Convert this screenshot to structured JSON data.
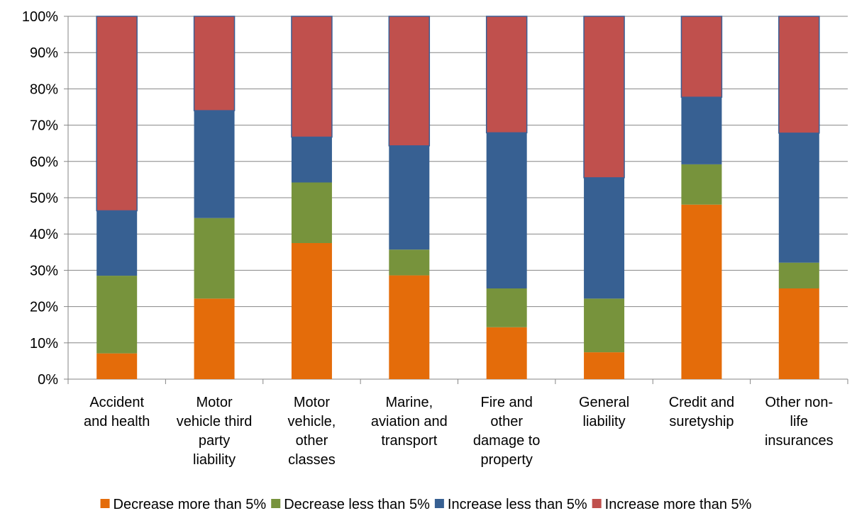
{
  "chart_data": {
    "type": "bar",
    "stacked": true,
    "percent": true,
    "categories": [
      [
        "Accident",
        "and health"
      ],
      [
        "Motor",
        "vehicle third",
        "party",
        "liability"
      ],
      [
        "Motor",
        "vehicle,",
        "other",
        "classes"
      ],
      [
        "Marine,",
        "aviation and",
        "transport"
      ],
      [
        "Fire and",
        "other",
        "damage to",
        "property"
      ],
      [
        "General",
        "liability"
      ],
      [
        "Credit and",
        "suretyship"
      ],
      [
        "Other non-",
        "life",
        "insurances"
      ]
    ],
    "series": [
      {
        "name": "Decrease more than 5%",
        "color": "#E46C0A",
        "values": [
          7.1,
          22.2,
          37.5,
          28.6,
          14.3,
          7.4,
          48.1,
          25.0
        ]
      },
      {
        "name": "Decrease less than 5%",
        "color": "#77933C",
        "values": [
          21.4,
          22.2,
          16.7,
          7.1,
          10.7,
          14.8,
          11.1,
          7.1
        ]
      },
      {
        "name": "Increase less than 5%",
        "color": "#376092",
        "values": [
          17.9,
          29.6,
          12.5,
          28.6,
          42.9,
          33.3,
          18.5,
          35.7
        ]
      },
      {
        "name": "Increase more than 5%",
        "color": "#C0504D",
        "values": [
          53.6,
          26.0,
          33.3,
          35.7,
          32.1,
          44.5,
          22.3,
          32.2
        ]
      }
    ],
    "yticks": [
      "0%",
      "10%",
      "20%",
      "30%",
      "40%",
      "50%",
      "60%",
      "70%",
      "80%",
      "90%",
      "100%"
    ],
    "ylim": [
      0,
      100
    ],
    "grid": "horizontal",
    "legend": "bottom"
  }
}
